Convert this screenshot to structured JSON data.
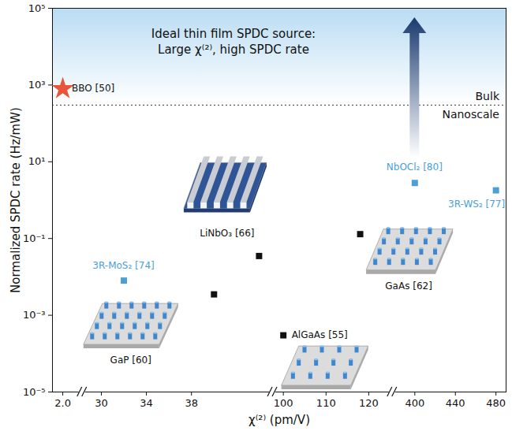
{
  "chart_data": {
    "type": "scatter",
    "x_label": "χ⁽²⁾ (pm/V)",
    "y_label": "Normalized SPDC rate (Hz/mW)",
    "annotation": [
      "Ideal thin film SPDC source:",
      "Large χ⁽²⁾, high SPDC rate"
    ],
    "log": "y",
    "xlim": [
      [
        1.7,
        2.5
      ],
      [
        28.5,
        45
      ],
      [
        98,
        125
      ],
      [
        380,
        490
      ]
    ],
    "xticks": [
      [
        {
          "value": 2,
          "label": "2.0"
        }
      ],
      [
        30,
        34,
        38
      ],
      [
        100,
        110,
        120
      ],
      [
        400,
        440,
        480
      ]
    ],
    "ylim": [
      1e-05,
      100000
    ],
    "yticks": [
      {
        "value": 1e-05,
        "label": "10⁻⁵"
      },
      {
        "value": 0.001,
        "label": "10⁻³"
      },
      {
        "value": 0.1,
        "label": "10⁻¹"
      },
      {
        "value": 10,
        "label": "10¹"
      },
      {
        "value": 1000,
        "label": "10³"
      },
      {
        "value": 100000,
        "label": "10⁵"
      }
    ],
    "reference_line": {
      "value": 300,
      "labels": [
        "Bulk",
        "Nanoscale"
      ]
    },
    "points": [
      {
        "label": "BBO [50]",
        "x": 2,
        "y": 800,
        "color": "#e8553a",
        "marker": "star"
      },
      {
        "label": "3R-MoS₂ [74]",
        "x": 32,
        "y": 0.008,
        "color": "#4a9fd8",
        "marker": "square"
      },
      {
        "label": "GaP [60]",
        "x": 40,
        "y": 0.0035,
        "color": "#111111",
        "marker": "square"
      },
      {
        "label": "LiNbO₃ [66]",
        "x": 44,
        "y": 0.035,
        "color": "#111111",
        "marker": "square"
      },
      {
        "label": "AlGaAs [55]",
        "x": 100,
        "y": 0.0003,
        "color": "#111111",
        "marker": "square"
      },
      {
        "label": "GaAs [62]",
        "x": 118,
        "y": 0.13,
        "color": "#111111",
        "marker": "square"
      },
      {
        "label": "NbOCl₂ [80]",
        "x": 400,
        "y": 2.8,
        "color": "#4a9fd8",
        "marker": "square"
      },
      {
        "label": "3R-WS₂ [77]",
        "x": 480,
        "y": 1.8,
        "color": "#4a9fd8",
        "marker": "square"
      }
    ]
  }
}
